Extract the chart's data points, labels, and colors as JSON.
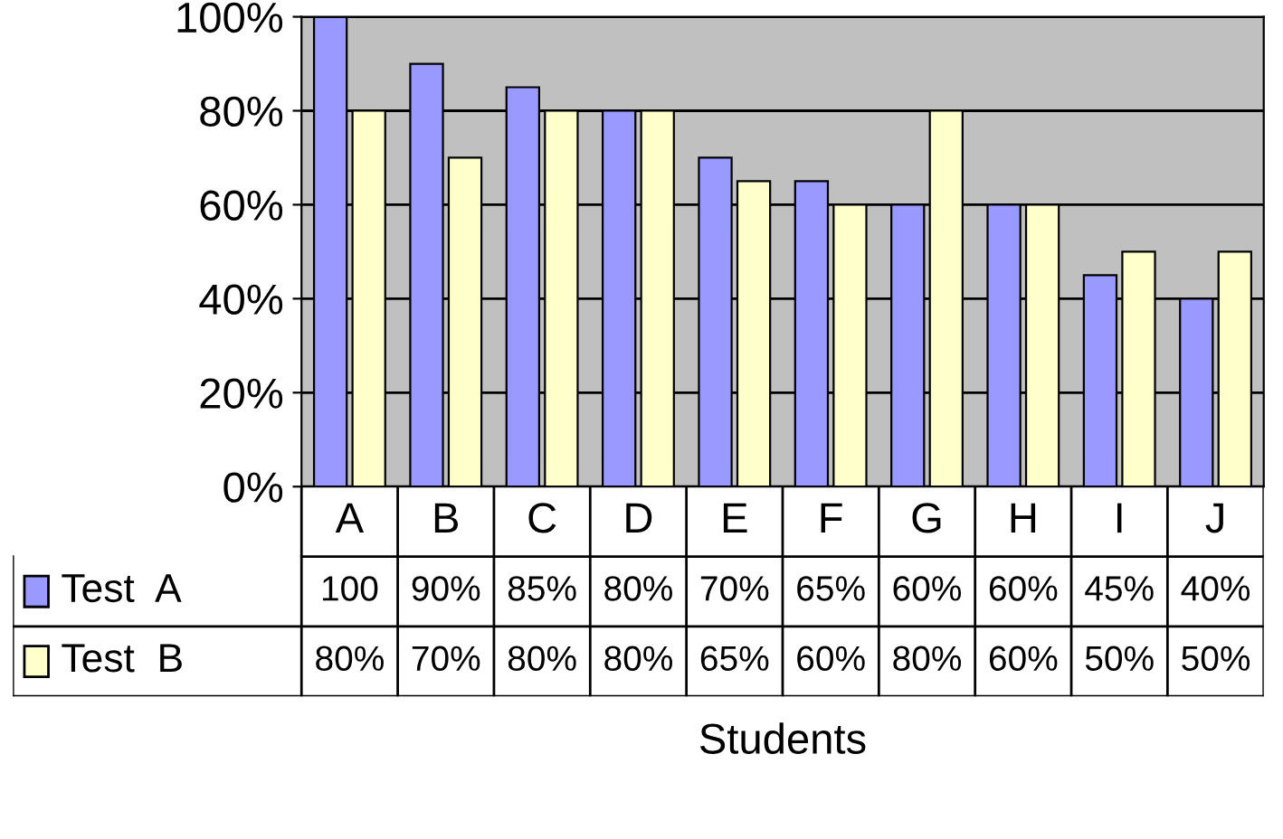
{
  "chart_data": {
    "type": "bar",
    "xlabel": "Students",
    "categories": [
      "A",
      "B",
      "C",
      "D",
      "E",
      "F",
      "G",
      "H",
      "I",
      "J"
    ],
    "series": [
      {
        "name": "Test  A",
        "color": "#9999ff",
        "values": [
          100,
          90,
          85,
          80,
          70,
          65,
          60,
          60,
          45,
          40
        ],
        "value_labels": [
          "100",
          "90%",
          "85%",
          "80%",
          "70%",
          "65%",
          "60%",
          "60%",
          "45%",
          "40%"
        ]
      },
      {
        "name": "Test  B",
        "color": "#ffffcc",
        "values": [
          80,
          70,
          80,
          80,
          65,
          60,
          80,
          60,
          50,
          50
        ],
        "value_labels": [
          "80%",
          "70%",
          "80%",
          "80%",
          "65%",
          "60%",
          "80%",
          "60%",
          "50%",
          "50%"
        ]
      }
    ],
    "ylim": [
      0,
      100
    ],
    "yticks": [
      {
        "value": 0,
        "label": "0%"
      },
      {
        "value": 20,
        "label": "20%"
      },
      {
        "value": 40,
        "label": "40%"
      },
      {
        "value": 60,
        "label": "60%"
      },
      {
        "value": 80,
        "label": "80%"
      },
      {
        "value": 100,
        "label": "100%"
      }
    ],
    "grid": "y",
    "legend": "bottom left"
  }
}
